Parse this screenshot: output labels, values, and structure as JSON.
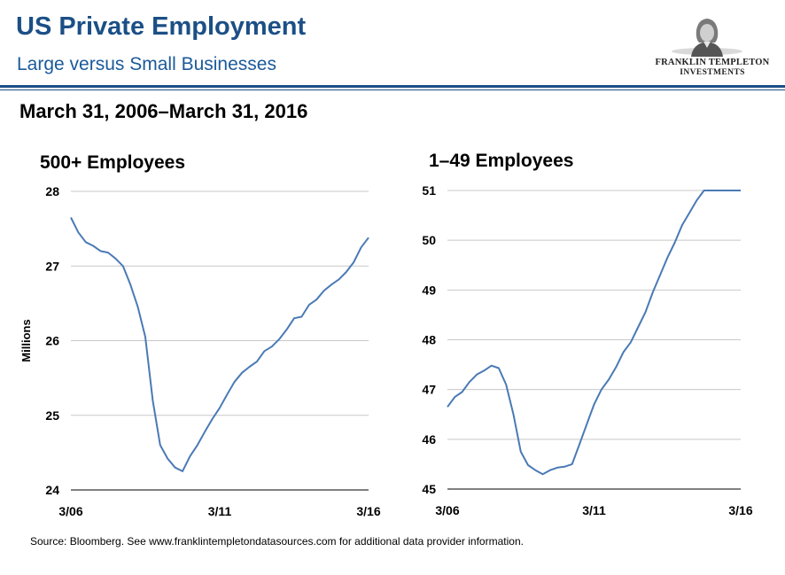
{
  "header": {
    "title": "US Private Employment",
    "subtitle": "Large versus Small Businesses",
    "logo_line1": "FRANKLIN TEMPLETON",
    "logo_line2": "INVESTMENTS",
    "date_range": "March 31, 2006–March 31, 2016"
  },
  "footer": {
    "source": "Source: Bloomberg. See www.franklintempletondatasources.com for additional data provider information."
  },
  "colors": {
    "brand": "#1b4f86",
    "series": "#4a7ab5",
    "grid": "#c8c8c8"
  },
  "logo_icon": "portrait-icon",
  "chart_data": [
    {
      "type": "line",
      "title": "500+ Employees",
      "xlabel": "",
      "ylabel": "Millions",
      "ylim": [
        24,
        28
      ],
      "yticks": [
        24,
        25,
        26,
        27,
        28
      ],
      "xlim": [
        "2006-03",
        "2016-03"
      ],
      "xtick_labels": [
        "3/06",
        "3/11",
        "3/16"
      ],
      "grid": true,
      "series": [
        {
          "x": [
            "2006-03",
            "2006-06",
            "2006-09",
            "2006-12",
            "2007-03",
            "2007-06",
            "2007-09",
            "2007-12",
            "2008-03",
            "2008-06",
            "2008-09",
            "2008-12",
            "2009-03",
            "2009-06",
            "2009-09",
            "2009-12",
            "2010-03",
            "2010-06",
            "2010-09",
            "2010-12",
            "2011-03",
            "2011-06",
            "2011-09",
            "2011-12",
            "2012-03",
            "2012-06",
            "2012-09",
            "2012-12",
            "2013-03",
            "2013-06",
            "2013-09",
            "2013-12",
            "2014-03",
            "2014-06",
            "2014-09",
            "2014-12",
            "2015-03",
            "2015-06",
            "2015-09",
            "2015-12",
            "2016-03"
          ],
          "y": [
            27.65,
            27.45,
            27.32,
            27.27,
            27.2,
            27.18,
            27.1,
            27.0,
            26.75,
            26.45,
            26.05,
            25.2,
            24.6,
            24.42,
            24.3,
            24.25,
            24.45,
            24.6,
            24.78,
            24.95,
            25.1,
            25.28,
            25.45,
            25.57,
            25.65,
            25.72,
            25.86,
            25.92,
            26.02,
            26.15,
            26.3,
            26.32,
            26.48,
            26.55,
            26.67,
            26.75,
            26.82,
            26.92,
            27.05,
            27.25,
            27.38
          ]
        }
      ]
    },
    {
      "type": "line",
      "title": "1–49 Employees",
      "xlabel": "",
      "ylabel": "",
      "ylim": [
        45,
        51
      ],
      "yticks": [
        45,
        46,
        47,
        48,
        49,
        50,
        51
      ],
      "xlim": [
        "2006-03",
        "2016-03"
      ],
      "xtick_labels": [
        "3/06",
        "3/11",
        "3/16"
      ],
      "grid": true,
      "series": [
        {
          "x": [
            "2006-03",
            "2006-06",
            "2006-09",
            "2006-12",
            "2007-03",
            "2007-06",
            "2007-09",
            "2007-12",
            "2008-03",
            "2008-06",
            "2008-09",
            "2008-12",
            "2009-03",
            "2009-06",
            "2009-09",
            "2009-12",
            "2010-03",
            "2010-06",
            "2010-09",
            "2010-12",
            "2011-03",
            "2011-06",
            "2011-09",
            "2011-12",
            "2012-03",
            "2012-06",
            "2012-09",
            "2012-12",
            "2013-03",
            "2013-06",
            "2013-09",
            "2013-12",
            "2014-03",
            "2014-06",
            "2014-09",
            "2014-12",
            "2015-03",
            "2015-06",
            "2015-09",
            "2015-12",
            "2016-03"
          ],
          "y": [
            46.65,
            46.85,
            46.95,
            47.15,
            47.3,
            47.38,
            47.48,
            47.43,
            47.1,
            46.5,
            45.75,
            45.48,
            45.38,
            45.3,
            45.38,
            45.43,
            45.45,
            45.5,
            45.9,
            46.3,
            46.7,
            47.0,
            47.2,
            47.45,
            47.75,
            47.95,
            48.25,
            48.55,
            48.95,
            49.3,
            49.65,
            49.95,
            50.3,
            50.55,
            50.8,
            51.0,
            51.0,
            51.0,
            51.0,
            51.0,
            51.0
          ]
        }
      ]
    }
  ]
}
